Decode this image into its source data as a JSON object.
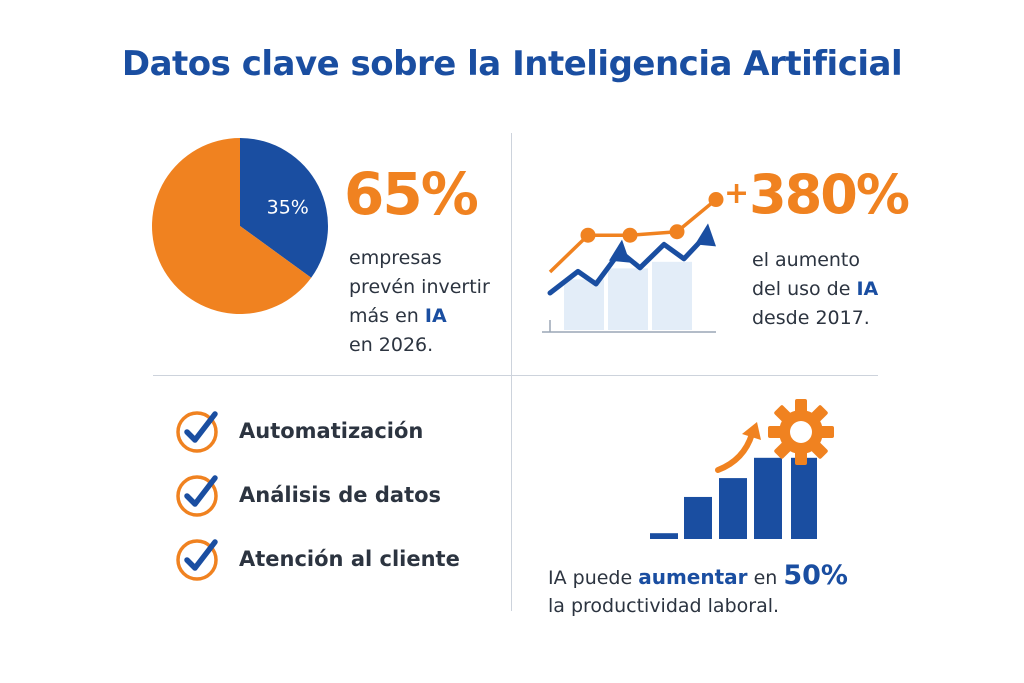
{
  "title": "Datos clave sobre la Inteligencia Artificial",
  "colors": {
    "blue": "#1a4ea1",
    "orange": "#f08220",
    "lightblue": "#e3edf8",
    "text": "#2c3440"
  },
  "stat_companies": {
    "value": "65%",
    "line1": "empresas",
    "line2": "prevén invertir",
    "line3_pre": "más en ",
    "line3_bold": "IA",
    "line4": "en 2026."
  },
  "stat_growth": {
    "plus": "+",
    "value": "380%",
    "line1": "el aumento",
    "line2_pre": "del uso de ",
    "line2_bold": "IA",
    "line3": "desde 2017."
  },
  "benefits": [
    {
      "label": "Automatización",
      "icon": "check-circle-icon"
    },
    {
      "label": "Análisis de datos",
      "icon": "check-circle-icon"
    },
    {
      "label": "Atención al cliente",
      "icon": "check-circle-icon"
    }
  ],
  "stat_productivity": {
    "pre": "IA puede ",
    "bold": "aumentar",
    "mid": " en ",
    "value": "50%",
    "line2": "la productividad laboral."
  },
  "chart_data": [
    {
      "type": "pie",
      "categories": [
        "",
        "35%"
      ],
      "values": [
        65,
        35
      ],
      "colors": [
        "#f08220",
        "#1a4ea1"
      ],
      "title": ""
    },
    {
      "type": "line",
      "title": "",
      "series": [
        {
          "color": "#f08220",
          "values": [
            0,
            3.2,
            3.2,
            3.5,
            6.3
          ]
        },
        {
          "color": "#1a4ea1",
          "values": [
            0.5,
            1.7,
            1.0,
            2.8,
            1.9,
            3.2,
            2.4,
            3.7
          ]
        }
      ],
      "bars": [
        2.3,
        2.8,
        3.1
      ],
      "icons": [
        "arrow-up-icon",
        "arrow-up-icon"
      ]
    },
    {
      "type": "bar",
      "title": "",
      "values": [
        0.4,
        2.9,
        4.2,
        5.6,
        5.6
      ],
      "icons": [
        "gear-icon",
        "arrow-up-icon"
      ]
    }
  ]
}
